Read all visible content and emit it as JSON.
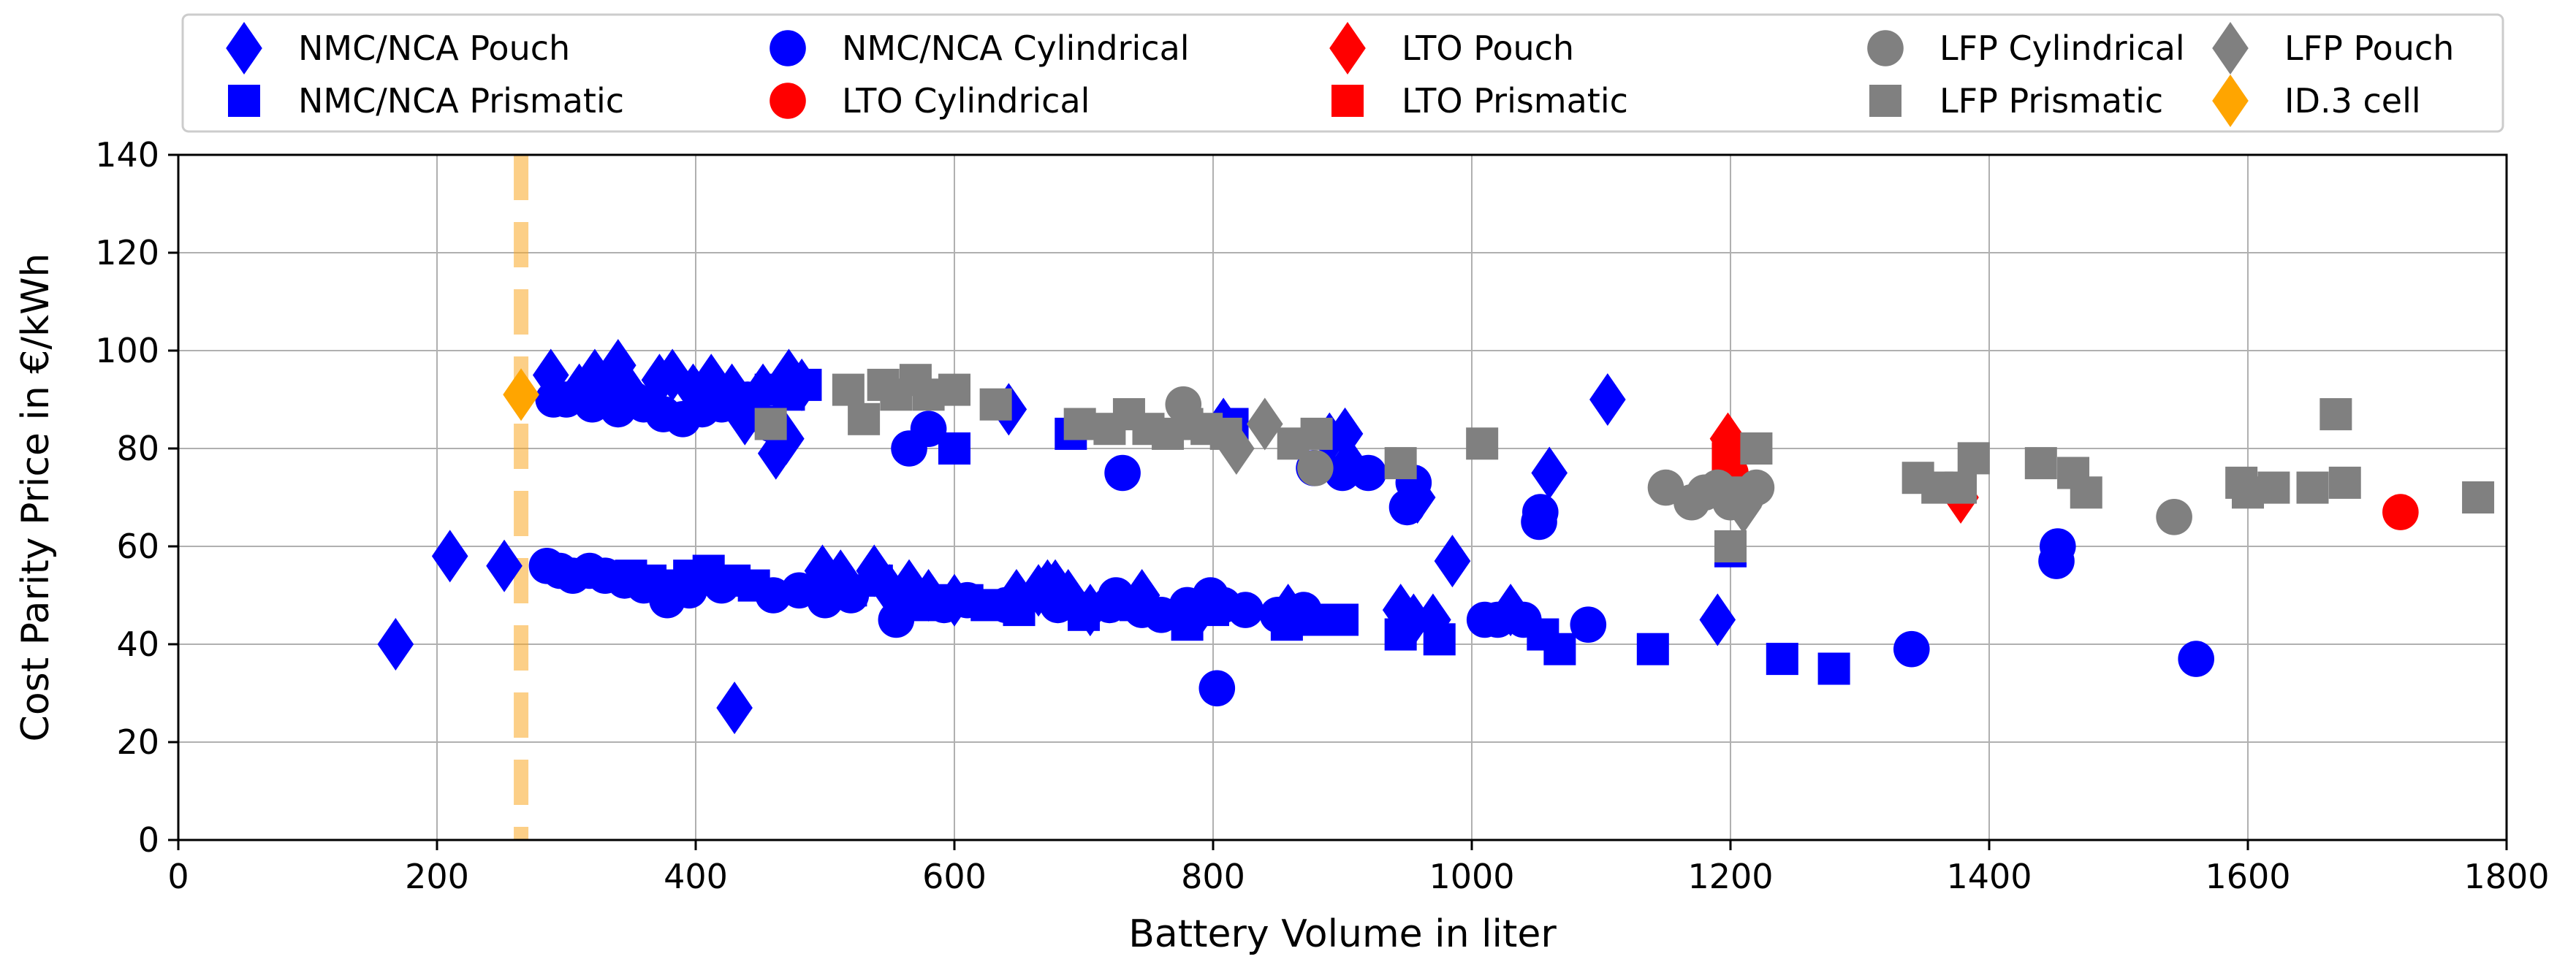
{
  "chart_data": {
    "type": "scatter",
    "xlabel": "Battery Volume in liter",
    "ylabel": "Cost Parity Price in €/kWh",
    "xlim": [
      0,
      1800
    ],
    "ylim": [
      0,
      140
    ],
    "xticks": [
      0,
      200,
      400,
      600,
      800,
      1000,
      1200,
      1400,
      1600,
      1800
    ],
    "yticks": [
      0,
      20,
      40,
      60,
      80,
      100,
      120,
      140
    ],
    "grid": true,
    "legend_location": "top",
    "reference_line": {
      "x": 265,
      "color": "#f9a825",
      "style": "dashed"
    },
    "colors": {
      "nmc": "#0000ff",
      "lto": "#ff0000",
      "lfp": "#808080",
      "id3": "#ffa500"
    },
    "series": [
      {
        "name": "NMC/NCA Pouch",
        "marker": "diamond",
        "color": "#0000ff",
        "points": [
          [
            168,
            40
          ],
          [
            210,
            58
          ],
          [
            252,
            56
          ],
          [
            288,
            95
          ],
          [
            310,
            92
          ],
          [
            322,
            95
          ],
          [
            340,
            97
          ],
          [
            348,
            92
          ],
          [
            372,
            94
          ],
          [
            382,
            95
          ],
          [
            398,
            92
          ],
          [
            412,
            94
          ],
          [
            428,
            92
          ],
          [
            438,
            86
          ],
          [
            452,
            92
          ],
          [
            462,
            79
          ],
          [
            472,
            95
          ],
          [
            482,
            93
          ],
          [
            430,
            27
          ],
          [
            470,
            82
          ],
          [
            498,
            55
          ],
          [
            512,
            54
          ],
          [
            538,
            55
          ],
          [
            550,
            51
          ],
          [
            565,
            52
          ],
          [
            580,
            50
          ],
          [
            600,
            49
          ],
          [
            642,
            88
          ],
          [
            648,
            50
          ],
          [
            665,
            51
          ],
          [
            672,
            52
          ],
          [
            678,
            52
          ],
          [
            688,
            50
          ],
          [
            705,
            47
          ],
          [
            745,
            50
          ],
          [
            790,
            47
          ],
          [
            808,
            85
          ],
          [
            858,
            47
          ],
          [
            890,
            82
          ],
          [
            902,
            83
          ],
          [
            905,
            77
          ],
          [
            945,
            47
          ],
          [
            955,
            45
          ],
          [
            958,
            70
          ],
          [
            970,
            45
          ],
          [
            985,
            57
          ],
          [
            1030,
            47
          ],
          [
            1060,
            75
          ],
          [
            1105,
            90
          ],
          [
            1190,
            45
          ]
        ]
      },
      {
        "name": "NMC/NCA Prismatic",
        "marker": "square",
        "color": "#0000ff",
        "points": [
          [
            350,
            54
          ],
          [
            365,
            53
          ],
          [
            380,
            52
          ],
          [
            395,
            54
          ],
          [
            410,
            55
          ],
          [
            430,
            53
          ],
          [
            445,
            52
          ],
          [
            458,
            92
          ],
          [
            472,
            91
          ],
          [
            485,
            93
          ],
          [
            520,
            51
          ],
          [
            540,
            53
          ],
          [
            560,
            50
          ],
          [
            575,
            48
          ],
          [
            590,
            49
          ],
          [
            600,
            80
          ],
          [
            610,
            49
          ],
          [
            625,
            48
          ],
          [
            650,
            47
          ],
          [
            690,
            83
          ],
          [
            700,
            46
          ],
          [
            740,
            48
          ],
          [
            780,
            44
          ],
          [
            800,
            47
          ],
          [
            815,
            85
          ],
          [
            857,
            44
          ],
          [
            880,
            45
          ],
          [
            900,
            45
          ],
          [
            945,
            42
          ],
          [
            975,
            41
          ],
          [
            1055,
            42
          ],
          [
            1068,
            39
          ],
          [
            1140,
            39
          ],
          [
            1200,
            59
          ],
          [
            1240,
            37
          ],
          [
            1280,
            35
          ]
        ]
      },
      {
        "name": "NMC/NCA Cylindrical",
        "marker": "circle",
        "color": "#0000ff",
        "points": [
          [
            290,
            90
          ],
          [
            300,
            90
          ],
          [
            310,
            91
          ],
          [
            320,
            89
          ],
          [
            330,
            92
          ],
          [
            340,
            88
          ],
          [
            352,
            90
          ],
          [
            360,
            89
          ],
          [
            375,
            87
          ],
          [
            390,
            86
          ],
          [
            405,
            88
          ],
          [
            420,
            89
          ],
          [
            440,
            90
          ],
          [
            458,
            85
          ],
          [
            285,
            56
          ],
          [
            295,
            55
          ],
          [
            305,
            54
          ],
          [
            318,
            55
          ],
          [
            330,
            54
          ],
          [
            345,
            53
          ],
          [
            360,
            52
          ],
          [
            378,
            49
          ],
          [
            395,
            51
          ],
          [
            420,
            52
          ],
          [
            460,
            50
          ],
          [
            480,
            51
          ],
          [
            500,
            49
          ],
          [
            520,
            50
          ],
          [
            555,
            45
          ],
          [
            575,
            49
          ],
          [
            592,
            48
          ],
          [
            610,
            49
          ],
          [
            640,
            48
          ],
          [
            680,
            48
          ],
          [
            700,
            47
          ],
          [
            720,
            48
          ],
          [
            725,
            50
          ],
          [
            730,
            75
          ],
          [
            745,
            47
          ],
          [
            760,
            46
          ],
          [
            780,
            48
          ],
          [
            798,
            50
          ],
          [
            803,
            31
          ],
          [
            808,
            48
          ],
          [
            825,
            47
          ],
          [
            850,
            46
          ],
          [
            870,
            47
          ],
          [
            878,
            76
          ],
          [
            900,
            75
          ],
          [
            920,
            75
          ],
          [
            950,
            68
          ],
          [
            955,
            73
          ],
          [
            1010,
            45
          ],
          [
            1020,
            45
          ],
          [
            1040,
            45
          ],
          [
            1052,
            65
          ],
          [
            1053,
            67
          ],
          [
            1090,
            44
          ],
          [
            1340,
            39
          ],
          [
            1452,
            57
          ],
          [
            1453,
            60
          ],
          [
            1560,
            37
          ],
          [
            565,
            80
          ],
          [
            580,
            84
          ]
        ]
      },
      {
        "name": "LTO Pouch",
        "marker": "diamond",
        "color": "#ff0000",
        "points": [
          [
            1198,
            82
          ],
          [
            1378,
            70
          ]
        ]
      },
      {
        "name": "LTO Prismatic",
        "marker": "square",
        "color": "#ff0000",
        "points": [
          [
            1198,
            78
          ]
        ]
      },
      {
        "name": "LTO Cylindrical",
        "marker": "circle",
        "color": "#ff0000",
        "points": [
          [
            1200,
            75
          ],
          [
            1718,
            67
          ]
        ]
      },
      {
        "name": "LFP Cylindrical",
        "marker": "circle",
        "color": "#808080",
        "points": [
          [
            777,
            89
          ],
          [
            879,
            76
          ],
          [
            1150,
            72
          ],
          [
            1170,
            69
          ],
          [
            1180,
            71
          ],
          [
            1190,
            72
          ],
          [
            1200,
            69
          ],
          [
            1212,
            70
          ],
          [
            1220,
            72
          ],
          [
            1543,
            66
          ]
        ]
      },
      {
        "name": "LFP Prismatic",
        "marker": "square",
        "color": "#808080",
        "points": [
          [
            458,
            85
          ],
          [
            518,
            92
          ],
          [
            530,
            86
          ],
          [
            545,
            93
          ],
          [
            555,
            91
          ],
          [
            570,
            94
          ],
          [
            580,
            91
          ],
          [
            600,
            92
          ],
          [
            632,
            89
          ],
          [
            697,
            85
          ],
          [
            720,
            84
          ],
          [
            735,
            87
          ],
          [
            750,
            84
          ],
          [
            765,
            83
          ],
          [
            780,
            85
          ],
          [
            795,
            84
          ],
          [
            810,
            83
          ],
          [
            862,
            81
          ],
          [
            880,
            83
          ],
          [
            945,
            77
          ],
          [
            1008,
            81
          ],
          [
            1200,
            60
          ],
          [
            1210,
            71
          ],
          [
            1220,
            80
          ],
          [
            1345,
            74
          ],
          [
            1360,
            72
          ],
          [
            1378,
            72
          ],
          [
            1388,
            78
          ],
          [
            1440,
            77
          ],
          [
            1465,
            75
          ],
          [
            1475,
            71
          ],
          [
            1595,
            73
          ],
          [
            1600,
            71
          ],
          [
            1620,
            72
          ],
          [
            1650,
            72
          ],
          [
            1668,
            87
          ],
          [
            1675,
            73
          ],
          [
            1778,
            70
          ]
        ]
      },
      {
        "name": "LFP Pouch",
        "marker": "diamond",
        "color": "#808080",
        "points": [
          [
            818,
            80
          ],
          [
            840,
            85
          ],
          [
            1210,
            68
          ]
        ]
      },
      {
        "name": "ID.3 cell",
        "marker": "diamond",
        "color": "#ffa500",
        "points": [
          [
            265,
            91
          ]
        ]
      }
    ],
    "legend": {
      "items": [
        {
          "label": "NMC/NCA Pouch",
          "marker": "diamond",
          "color": "#0000ff"
        },
        {
          "label": "NMC/NCA Prismatic",
          "marker": "square",
          "color": "#0000ff"
        },
        {
          "label": "NMC/NCA Cylindrical",
          "marker": "circle",
          "color": "#0000ff"
        },
        {
          "label": "LTO Cylindrical",
          "marker": "circle",
          "color": "#ff0000"
        },
        {
          "label": "LTO Pouch",
          "marker": "diamond",
          "color": "#ff0000"
        },
        {
          "label": "LTO Prismatic",
          "marker": "square",
          "color": "#ff0000"
        },
        {
          "label": "LFP Cylindrical",
          "marker": "circle",
          "color": "#808080"
        },
        {
          "label": "LFP Prismatic",
          "marker": "square",
          "color": "#808080"
        },
        {
          "label": "LFP Pouch",
          "marker": "diamond",
          "color": "#808080"
        },
        {
          "label": "ID.3 cell",
          "marker": "diamond",
          "color": "#ffa500"
        }
      ]
    }
  }
}
